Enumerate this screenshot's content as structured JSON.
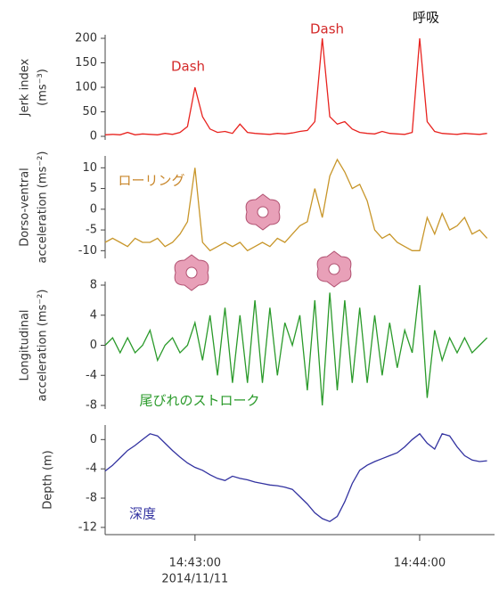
{
  "chart_data": [
    {
      "type": "line",
      "ylabel": [
        "Jerk index",
        "(ms⁻³)"
      ],
      "ylim": [
        0,
        200
      ],
      "yticks": [
        0,
        50,
        100,
        150,
        200
      ],
      "annotations": [
        "Dash",
        "Dash",
        "呼吸"
      ],
      "annotation_colors": [
        "#d42a2a",
        "#d42a2a",
        "#111111"
      ],
      "color": "#e8231f",
      "values": [
        3,
        4,
        3,
        8,
        3,
        5,
        4,
        3,
        6,
        4,
        8,
        20,
        100,
        40,
        15,
        8,
        10,
        6,
        25,
        8,
        6,
        5,
        4,
        6,
        5,
        7,
        10,
        12,
        30,
        200,
        40,
        25,
        30,
        15,
        8,
        6,
        5,
        10,
        6,
        5,
        4,
        8,
        200,
        30,
        10,
        6,
        5,
        4,
        6,
        5,
        4,
        6
      ]
    },
    {
      "type": "line",
      "ylabel": [
        "Dorso-ventral",
        "acceleration (ms⁻²)"
      ],
      "ylim": [
        -11,
        12
      ],
      "yticks": [
        -10,
        -5,
        0,
        5,
        10
      ],
      "annotations": [
        "ローリング"
      ],
      "annotation_colors": [
        "#c8862a"
      ],
      "color": "#c8962a",
      "values": [
        -8,
        -7,
        -8,
        -9,
        -7,
        -8,
        -8,
        -7,
        -9,
        -8,
        -6,
        -3,
        10,
        -8,
        -10,
        -9,
        -8,
        -9,
        -8,
        -10,
        -9,
        -8,
        -9,
        -7,
        -8,
        -6,
        -4,
        -3,
        5,
        -2,
        8,
        12,
        9,
        5,
        6,
        2,
        -5,
        -7,
        -6,
        -8,
        -9,
        -10,
        -10,
        -2,
        -6,
        -1,
        -5,
        -4,
        -2,
        -6,
        -5,
        -7
      ]
    },
    {
      "type": "line",
      "ylabel": [
        "Longitudinal",
        "acceleration (ms⁻²)"
      ],
      "ylim": [
        -8,
        8
      ],
      "yticks": [
        -8,
        -4,
        0,
        4,
        8
      ],
      "annotations": [
        "尾びれのストローク"
      ],
      "annotation_colors": [
        "#2a9a2a"
      ],
      "color": "#2a9a2a",
      "values": [
        0,
        1,
        -1,
        1,
        -1,
        0,
        2,
        -2,
        0,
        1,
        -1,
        0,
        3,
        -2,
        4,
        -4,
        5,
        -5,
        4,
        -5,
        6,
        -5,
        5,
        -4,
        3,
        0,
        4,
        -6,
        6,
        -8,
        7,
        -6,
        6,
        -5,
        5,
        -5,
        4,
        -4,
        3,
        -3,
        2,
        -1,
        8,
        -7,
        2,
        -2,
        1,
        -1,
        1,
        -1,
        0,
        1
      ]
    },
    {
      "type": "line",
      "ylabel": [
        "Depth (m)"
      ],
      "ylim": [
        -12.5,
        1.5
      ],
      "yticks": [
        -12,
        -8,
        -4,
        0
      ],
      "annotations": [
        "深度"
      ],
      "annotation_colors": [
        "#3232a0"
      ],
      "color": "#3232a0",
      "values": [
        -4.3,
        -3.5,
        -2.5,
        -1.5,
        -0.8,
        0,
        0.8,
        0.5,
        -0.5,
        -1.5,
        -2.4,
        -3.2,
        -3.8,
        -4.2,
        -4.8,
        -5.3,
        -5.6,
        -5.0,
        -5.3,
        -5.5,
        -5.8,
        -6.0,
        -6.2,
        -6.3,
        -6.5,
        -6.8,
        -7.8,
        -8.8,
        -10.0,
        -10.8,
        -11.2,
        -10.5,
        -8.5,
        -6.0,
        -4.2,
        -3.5,
        -3.0,
        -2.6,
        -2.2,
        -1.8,
        -1.0,
        0,
        0.8,
        -0.5,
        -1.3,
        0.8,
        0.5,
        -1.0,
        -2.2,
        -2.8,
        -3.0,
        -2.9
      ],
      "x": [
        "14:42:36",
        "14:42:38",
        "14:42:40",
        "14:42:42",
        "14:42:44",
        "14:42:46",
        "14:42:48",
        "14:42:50",
        "14:42:52",
        "14:42:54",
        "14:42:56",
        "14:42:58",
        "14:43:00",
        "14:43:02",
        "14:43:04",
        "14:43:06",
        "14:43:08",
        "14:43:10",
        "14:43:12",
        "14:43:14",
        "14:43:16",
        "14:43:18",
        "14:43:20",
        "14:43:22",
        "14:43:24",
        "14:43:26",
        "14:43:28",
        "14:43:30",
        "14:43:32",
        "14:43:34",
        "14:43:36",
        "14:43:38",
        "14:43:40",
        "14:43:42",
        "14:43:44",
        "14:43:46",
        "14:43:48",
        "14:43:50",
        "14:43:52",
        "14:43:54",
        "14:43:56",
        "14:43:58",
        "14:44:00",
        "14:44:02",
        "14:44:04",
        "14:44:06",
        "14:44:08",
        "14:44:10",
        "14:44:12",
        "14:44:14",
        "14:44:16",
        "14:44:18"
      ],
      "xlim": [
        "14:42:36",
        "14:44:20"
      ],
      "xticks": [
        "14:43:00",
        "14:44:00"
      ],
      "x_date": "2014/11/11"
    }
  ]
}
